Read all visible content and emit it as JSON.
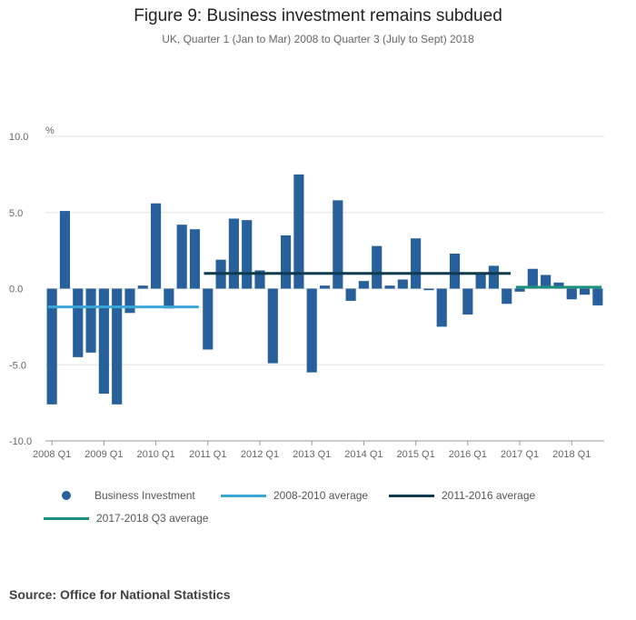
{
  "figure": {
    "title": "Figure 9: Business investment remains subdued",
    "subtitle": "UK, Quarter 1 (Jan to Mar) 2008 to Quarter 3 (July to Sept) 2018"
  },
  "source": "Source: Office for National Statistics",
  "colors": {
    "bars": "#27609a",
    "avg_2008_2010": "#3ba7d9",
    "avg_2011_2016": "#0f3a4e",
    "avg_2017_2018": "#1e8f7e"
  },
  "chart_data": {
    "type": "bar",
    "ylabel": "%",
    "ylim": [
      -10,
      10
    ],
    "yticks": [
      "10.0",
      "5.0",
      "0.0",
      "-5.0",
      "-10.0"
    ],
    "ytick_values": [
      10,
      5,
      0,
      -5,
      -10
    ],
    "xtick_labels": [
      "2008 Q1",
      "2009 Q1",
      "2010 Q1",
      "2011 Q1",
      "2012 Q1",
      "2013 Q1",
      "2014 Q1",
      "2015 Q1",
      "2016 Q1",
      "2017 Q1",
      "2018 Q1"
    ],
    "grid": true,
    "categories": [
      "2008 Q1",
      "2008 Q2",
      "2008 Q3",
      "2008 Q4",
      "2009 Q1",
      "2009 Q2",
      "2009 Q3",
      "2009 Q4",
      "2010 Q1",
      "2010 Q2",
      "2010 Q3",
      "2010 Q4",
      "2011 Q1",
      "2011 Q2",
      "2011 Q3",
      "2011 Q4",
      "2012 Q1",
      "2012 Q2",
      "2012 Q3",
      "2012 Q4",
      "2013 Q1",
      "2013 Q2",
      "2013 Q3",
      "2013 Q4",
      "2014 Q1",
      "2014 Q2",
      "2014 Q3",
      "2014 Q4",
      "2015 Q1",
      "2015 Q2",
      "2015 Q3",
      "2015 Q4",
      "2016 Q1",
      "2016 Q2",
      "2016 Q3",
      "2016 Q4",
      "2017 Q1",
      "2017 Q2",
      "2017 Q3",
      "2017 Q4",
      "2018 Q1",
      "2018 Q2",
      "2018 Q3"
    ],
    "series": [
      {
        "name": "Business Investment",
        "values": [
          -7.6,
          5.1,
          -4.5,
          -4.2,
          -6.9,
          -7.6,
          -1.6,
          0.2,
          5.6,
          -1.3,
          4.2,
          3.9,
          -4.0,
          1.9,
          4.6,
          4.5,
          1.2,
          -4.9,
          3.5,
          7.5,
          -5.5,
          0.2,
          5.8,
          -0.8,
          0.5,
          2.8,
          0.2,
          0.6,
          3.3,
          -0.1,
          -2.5,
          2.3,
          -1.7,
          1.0,
          1.5,
          -1.0,
          -0.2,
          1.3,
          0.9,
          0.4,
          -0.7,
          -0.4,
          -1.1
        ]
      }
    ],
    "averages": [
      {
        "name": "2008-2010 average",
        "value": -1.2,
        "from": "2008 Q1",
        "to": "2010 Q4"
      },
      {
        "name": "2011-2016 average",
        "value": 1.0,
        "from": "2011 Q1",
        "to": "2016 Q4"
      },
      {
        "name": "2017-2018 Q3 average",
        "value": 0.1,
        "from": "2017 Q1",
        "to": "2018 Q3"
      }
    ]
  },
  "legend": {
    "items": [
      {
        "label": "Business Investment",
        "kind": "dot"
      },
      {
        "label": "2008-2010 average",
        "kind": "line"
      },
      {
        "label": "2011-2016 average",
        "kind": "line"
      },
      {
        "label": "2017-2018 Q3 average",
        "kind": "line"
      }
    ]
  }
}
